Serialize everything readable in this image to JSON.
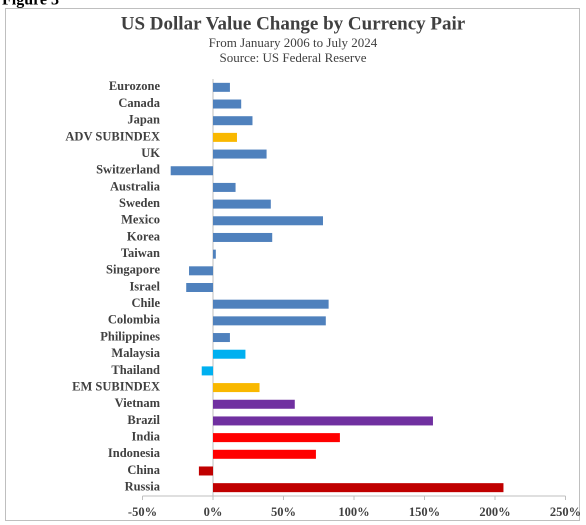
{
  "figure_label": "Figure 3",
  "chart_data": {
    "type": "bar",
    "orientation": "horizontal",
    "title": "US Dollar Value Change by Currency Pair",
    "subtitle": "From January 2006 to July 2024",
    "source": "Source: US Federal Reserve",
    "categories": [
      "Eurozone",
      "Canada",
      "Japan",
      "ADV SUBINDEX",
      "UK",
      "Switzerland",
      "Australia",
      "Sweden",
      "Mexico",
      "Korea",
      "Taiwan",
      "Singapore",
      "Israel",
      "Chile",
      "Colombia",
      "Philippines",
      "Malaysia",
      "Thailand",
      "EM SUBINDEX",
      "Vietnam",
      "Brazil",
      "India",
      "Indonesia",
      "China",
      "Russia"
    ],
    "values": [
      12,
      20,
      28,
      17,
      38,
      -30,
      16,
      41,
      78,
      42,
      2,
      -17,
      -19,
      82,
      80,
      12,
      23,
      -8,
      33,
      58,
      156,
      90,
      73,
      -10,
      206
    ],
    "colors": [
      "#4f81bd",
      "#4f81bd",
      "#4f81bd",
      "#f9b800",
      "#4f81bd",
      "#4f81bd",
      "#4f81bd",
      "#4f81bd",
      "#4f81bd",
      "#4f81bd",
      "#4f81bd",
      "#4f81bd",
      "#4f81bd",
      "#4f81bd",
      "#4f81bd",
      "#4f81bd",
      "#00b0f0",
      "#00b0f0",
      "#f9b800",
      "#7030a0",
      "#7030a0",
      "#ff0000",
      "#ff0000",
      "#c00000",
      "#c00000"
    ],
    "xlim": [
      -50,
      250
    ],
    "xticks": [
      {
        "value": -50,
        "label": "-50%"
      },
      {
        "value": 0,
        "label": "0%"
      },
      {
        "value": 50,
        "label": "50%"
      },
      {
        "value": 100,
        "label": "100%"
      },
      {
        "value": 150,
        "label": "150%"
      },
      {
        "value": 200,
        "label": "200%"
      },
      {
        "value": 250,
        "label": "250%"
      }
    ],
    "grid": false
  }
}
